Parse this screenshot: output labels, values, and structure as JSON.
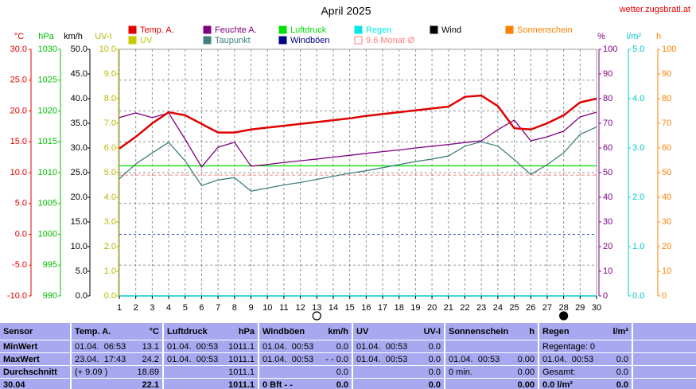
{
  "chart_data": {
    "type": "line",
    "title": "April 2025",
    "site": "wetter.zugsbratl.at",
    "x": [
      1,
      2,
      3,
      4,
      5,
      6,
      7,
      8,
      9,
      10,
      11,
      12,
      13,
      14,
      15,
      16,
      17,
      18,
      19,
      20,
      21,
      22,
      23,
      24,
      25,
      26,
      27,
      28,
      29,
      30
    ],
    "xlim": [
      1,
      30
    ],
    "xticks": [
      1,
      2,
      3,
      4,
      5,
      6,
      7,
      8,
      9,
      10,
      11,
      12,
      13,
      14,
      15,
      16,
      17,
      18,
      19,
      20,
      21,
      22,
      23,
      24,
      25,
      26,
      27,
      28,
      29,
      30
    ],
    "grid": true,
    "axes": [
      {
        "unit": "°C",
        "color": "#e00000",
        "lim": [
          -10,
          30
        ],
        "ticks": [
          {
            "value": 30,
            "label": "30.0"
          },
          {
            "value": 25,
            "label": "25.0"
          },
          {
            "value": 20,
            "label": "20.0"
          },
          {
            "value": 15,
            "label": "15.0"
          },
          {
            "value": 10,
            "label": "10.0"
          },
          {
            "value": 5,
            "label": "5.0"
          },
          {
            "value": 0,
            "label": "0.0"
          },
          {
            "value": -5,
            "label": "-5.0"
          },
          {
            "value": -10,
            "label": "-10.0"
          }
        ]
      },
      {
        "unit": "hPa",
        "color": "#00c000",
        "lim": [
          990,
          1030
        ],
        "ticks": [
          1030,
          1025,
          1020,
          1015,
          1010,
          1005,
          1000,
          995,
          990
        ]
      },
      {
        "unit": "km/h",
        "color": "#000000",
        "lim": [
          0,
          50
        ],
        "ticks": [
          {
            "value": 50,
            "label": "50.0"
          },
          {
            "value": 45,
            "label": "45.0"
          },
          {
            "value": 40,
            "label": "40.0"
          },
          {
            "value": 35,
            "label": "35.0"
          },
          {
            "value": 30,
            "label": "30.0"
          },
          {
            "value": 25,
            "label": "25.0"
          },
          {
            "value": 20,
            "label": "20.0"
          },
          {
            "value": 15,
            "label": "15.0"
          },
          {
            "value": 10,
            "label": "10.0"
          },
          {
            "value": 5,
            "label": "5.0"
          },
          {
            "value": 0,
            "label": "0.0"
          }
        ]
      },
      {
        "unit": "UV-I",
        "color": "#b8b800",
        "lim": [
          0,
          10
        ],
        "ticks": [
          {
            "value": 10,
            "label": "10.0"
          },
          {
            "value": 9,
            "label": "9.0"
          },
          {
            "value": 8,
            "label": "8.0"
          },
          {
            "value": 7,
            "label": "7.0"
          },
          {
            "value": 6,
            "label": "6.0"
          },
          {
            "value": 5,
            "label": "5.0"
          },
          {
            "value": 4,
            "label": "4.0"
          },
          {
            "value": 3,
            "label": "3.0"
          },
          {
            "value": 2,
            "label": "2.0"
          },
          {
            "value": 1,
            "label": "1.0"
          },
          {
            "value": 0,
            "label": "0.0"
          }
        ]
      },
      {
        "unit": "%",
        "color": "#800080",
        "lim": [
          0,
          100
        ],
        "ticks": [
          100,
          90,
          80,
          70,
          60,
          50,
          40,
          30,
          20,
          10,
          0
        ]
      },
      {
        "unit": "l/m²",
        "color": "#00c8c8",
        "lim": [
          0,
          5
        ],
        "ticks": [
          {
            "value": 5,
            "label": "5.0"
          },
          {
            "value": 4,
            "label": "4.0"
          },
          {
            "value": 3,
            "label": "3.0"
          },
          {
            "value": 2,
            "label": "2.0"
          },
          {
            "value": 1,
            "label": "1.0"
          },
          {
            "value": 0,
            "label": "0.0"
          }
        ]
      },
      {
        "unit": "h",
        "color": "#ff8000",
        "lim": [
          0,
          100
        ],
        "ticks": [
          100,
          90,
          80,
          70,
          60,
          50,
          40,
          30,
          20,
          10,
          0
        ]
      }
    ],
    "series": [
      {
        "name": "Temp. A.",
        "color": "#e00000",
        "axis": 0,
        "width": 2.5,
        "values": [
          13.9,
          15.8,
          18.0,
          19.8,
          19.3,
          17.9,
          16.5,
          16.5,
          17.0,
          17.3,
          17.6,
          17.9,
          18.2,
          18.5,
          18.8,
          19.2,
          19.5,
          19.8,
          20.1,
          20.4,
          20.7,
          22.3,
          22.5,
          20.8,
          17.2,
          17.0,
          18.0,
          19.3,
          21.4,
          22.0
        ]
      },
      {
        "name": "Feuchte A.",
        "color": "#800080",
        "axis": 4,
        "width": 1.3,
        "values": [
          72.3,
          74.2,
          72.3,
          74.2,
          63.5,
          52.3,
          60.3,
          62.3,
          52.6,
          53.3,
          54.1,
          54.8,
          55.5,
          56.3,
          57.0,
          57.8,
          58.5,
          59.2,
          60.0,
          60.7,
          61.4,
          62.2,
          62.9,
          67.4,
          71.3,
          62.9,
          64.5,
          66.8,
          72.6,
          74.5
        ]
      },
      {
        "name": "Luftdruck",
        "color": "#00e000",
        "axis": 1,
        "width": 1.3,
        "values": [
          1011.1,
          1011.1,
          1011.1,
          1011.1,
          1011.1,
          1011.1,
          1011.1,
          1011.1,
          1011.1,
          1011.1,
          1011.1,
          1011.1,
          1011.1,
          1011.1,
          1011.1,
          1011.1,
          1011.1,
          1011.1,
          1011.1,
          1011.1,
          1011.1,
          1011.1,
          1011.1,
          1011.1,
          1011.1,
          1011.1,
          1011.1,
          1011.1,
          1011.1,
          1011.1
        ]
      },
      {
        "name": "Taupunkt",
        "color": "#408080",
        "axis": 0,
        "width": 1.3,
        "values": [
          9.0,
          11.4,
          13.2,
          14.9,
          11.9,
          7.9,
          8.8,
          9.2,
          7.0,
          7.5,
          8.0,
          8.4,
          8.9,
          9.4,
          9.9,
          10.3,
          10.8,
          11.3,
          11.8,
          12.2,
          12.7,
          14.3,
          15.0,
          14.3,
          12.1,
          9.7,
          11.3,
          13.2,
          16.2,
          17.4
        ]
      }
    ],
    "legend_extra": [
      {
        "name": "Regen",
        "color": "#00e8e8"
      },
      {
        "name": "Wind",
        "color": "#000000"
      },
      {
        "name": "Sonnenschein",
        "color": "#ff8000"
      },
      {
        "name": "UV",
        "color": "#c8c800"
      },
      {
        "name": "Windböen",
        "color": "#000080"
      }
    ],
    "reference_line": {
      "name": "9.6 Monat-Ø",
      "value": 9.6,
      "axis": 0,
      "color": "#ff8080"
    },
    "freeze_line": {
      "value": 0,
      "axis": 0,
      "color": "#2040c0"
    },
    "moon_phases": [
      {
        "day": 13,
        "phase": "full"
      },
      {
        "day": 28,
        "phase": "new"
      }
    ]
  },
  "table": {
    "header": {
      "label": "Sensor",
      "cells": [
        {
          "l": "Temp. A.",
          "r": "°C"
        },
        {
          "l": "Luftdruck",
          "r": "hPa"
        },
        {
          "l": "Windböen",
          "r": "km/h"
        },
        {
          "l": "UV",
          "r": "UV-I"
        },
        {
          "l": "Sonnenschein",
          "r": "h"
        },
        {
          "l": "Regen",
          "r": "l/m²"
        }
      ]
    },
    "rows": [
      {
        "label": "MinWert",
        "cells": [
          {
            "l": "01.04.  06:53",
            "r": "13.1"
          },
          {
            "l": "01.04.  00:53",
            "r": "1011.1"
          },
          {
            "l": "01.04.  00:53",
            "r": "0.0"
          },
          {
            "l": "01.04.  00:53",
            "r": "0.0"
          },
          {},
          {
            "l": "Regentage: 0"
          }
        ]
      },
      {
        "label": "MaxWert",
        "cells": [
          {
            "l": "23.04.  17:43",
            "r": "24.2"
          },
          {
            "l": "01.04.  00:53",
            "r": "1011.1"
          },
          {
            "l": "01.04.  00:53",
            "r": "- - 0.0"
          },
          {
            "l": "01.04.  00:53",
            "r": "0.0"
          },
          {
            "l": "01.04.  00:53",
            "r": "0.00"
          },
          {
            "l": "01.04.  00:53",
            "r": "0.0"
          }
        ]
      },
      {
        "label": "Durchschnitt",
        "cells": [
          {
            "l": "(+ 9.09 )",
            "r": "18.69"
          },
          {
            "r": "1011.1"
          },
          {
            "r": "0.0"
          },
          {
            "r": "0.0"
          },
          {
            "l": "0 min.",
            "r": "0.00"
          },
          {
            "l": "Gesamt:",
            "r": "0.0"
          }
        ]
      },
      {
        "label": "30.04",
        "cells": [
          {
            "r": "22.1"
          },
          {
            "r": "1011.1"
          },
          {
            "l": "0 Bft - -",
            "r": "0.0"
          },
          {
            "r": "0.0"
          },
          {
            "r": "0.00"
          },
          {
            "l": "0.0 l/m²",
            "r": "0.0"
          }
        ]
      }
    ]
  }
}
